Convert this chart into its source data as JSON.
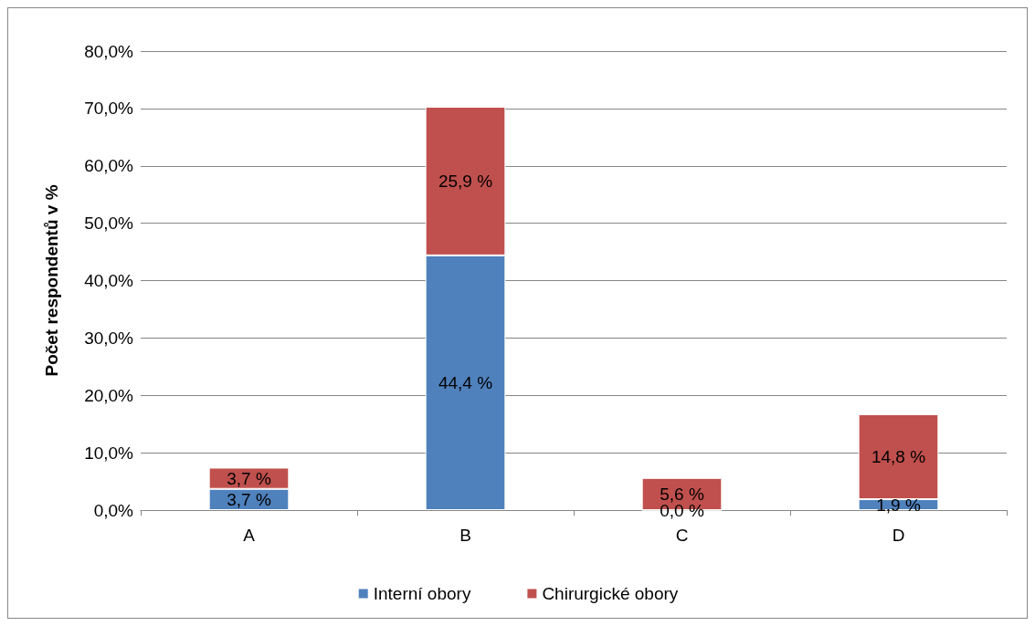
{
  "chart_data": {
    "type": "bar",
    "stacked": true,
    "ylabel": "Počet respondentů v %",
    "categories": [
      "A",
      "B",
      "C",
      "D"
    ],
    "series": [
      {
        "name": "Interní obory",
        "color": "#4f81bd",
        "values": [
          3.7,
          44.4,
          0,
          1.9
        ],
        "value_labels": [
          "3,7 %",
          "44,4 %",
          "0,0 %",
          "1,9 %"
        ]
      },
      {
        "name": "Chirurgické obory",
        "color": "#c0504d",
        "values": [
          3.7,
          25.9,
          5.6,
          14.8
        ],
        "value_labels": [
          "3,7 %",
          "25,9 %",
          "5,6 %",
          "14,8 %"
        ]
      }
    ],
    "ylim": [
      0,
      80
    ],
    "yticks": [
      {
        "value": 0,
        "label": "0,0%"
      },
      {
        "value": 10,
        "label": "10,0%"
      },
      {
        "value": 20,
        "label": "20,0%"
      },
      {
        "value": 30,
        "label": "30,0%"
      },
      {
        "value": 40,
        "label": "40,0%"
      },
      {
        "value": 50,
        "label": "50,0%"
      },
      {
        "value": 60,
        "label": "60,0%"
      },
      {
        "value": 70,
        "label": "70,0%"
      },
      {
        "value": 80,
        "label": "80,0%"
      }
    ],
    "grid": "y",
    "legend": "bottom"
  }
}
